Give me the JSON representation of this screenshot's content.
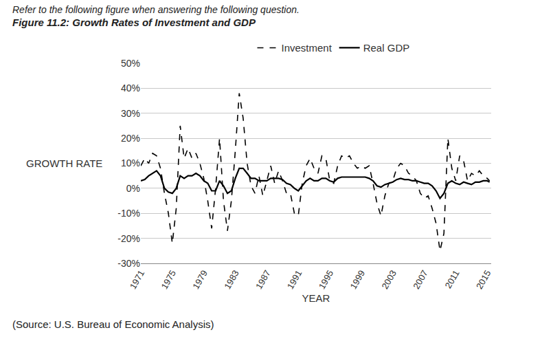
{
  "chart_data": {
    "type": "line",
    "caption": "Refer to the following figure when answering the following question.",
    "title": "Figure 11.2: Growth Rates of Investment and GDP",
    "source": "(Source: U.S. Bureau of Economic Analysis)",
    "xlabel": "YEAR",
    "ylabel": "GROWTH RATE",
    "x": [
      1971,
      1971.5,
      1972,
      1972.5,
      1973,
      1973.5,
      1974,
      1974.5,
      1975,
      1975.5,
      1976,
      1976.5,
      1977,
      1977.5,
      1978,
      1978.5,
      1979,
      1979.5,
      1980,
      1980.5,
      1981,
      1981.5,
      1982,
      1982.5,
      1983,
      1983.5,
      1984,
      1984.5,
      1985,
      1985.5,
      1986,
      1986.5,
      1987,
      1987.5,
      1988,
      1988.5,
      1989,
      1989.5,
      1990,
      1990.5,
      1991,
      1991.5,
      1992,
      1992.5,
      1993,
      1993.5,
      1994,
      1994.5,
      1995,
      1995.5,
      1996,
      1996.5,
      1997,
      1997.5,
      1998,
      1998.5,
      1999,
      1999.5,
      2000,
      2000.5,
      2001,
      2001.5,
      2002,
      2002.5,
      2003,
      2003.5,
      2004,
      2004.5,
      2005,
      2005.5,
      2006,
      2006.5,
      2007,
      2007.5,
      2008,
      2008.5,
      2009,
      2009.5,
      2010,
      2010.5,
      2011,
      2011.5,
      2012,
      2012.5,
      2013,
      2013.5,
      2014,
      2014.5,
      2015,
      2015.3
    ],
    "series": [
      {
        "name": "Investment",
        "color": "#000000",
        "line_style": "dash",
        "values": [
          9,
          12,
          10,
          14,
          13,
          8,
          -2,
          -10,
          -22,
          -8,
          25,
          12,
          16,
          12,
          14,
          10,
          4,
          -5,
          -16,
          0,
          20,
          -5,
          -17,
          -5,
          15,
          38,
          28,
          10,
          1,
          -2,
          5,
          -3,
          3,
          9,
          2,
          7,
          3,
          -2,
          -2,
          -10,
          -11,
          2,
          9,
          12,
          8,
          6,
          13,
          12,
          3,
          2,
          9,
          13,
          12,
          13,
          10,
          8,
          9,
          8,
          9,
          2,
          -6,
          -11,
          -3,
          2,
          3,
          8,
          10,
          9,
          6,
          5,
          3,
          -2,
          -4,
          -3,
          -8,
          -14,
          -25,
          -18,
          20,
          8,
          3,
          13,
          11,
          3,
          6,
          5,
          7,
          5,
          4,
          3
        ]
      },
      {
        "name": "Real GDP",
        "color": "#000000",
        "line_style": "solid",
        "values": [
          3,
          3.5,
          5,
          6,
          7,
          5,
          0,
          -1.5,
          -2,
          0,
          5,
          4,
          5,
          5,
          6,
          5,
          3,
          2,
          -1,
          -1,
          3,
          1,
          -2,
          -1,
          4,
          8,
          8,
          6,
          4,
          4,
          3,
          3,
          3,
          4,
          4,
          4,
          3.5,
          2,
          1.5,
          0,
          -1,
          1,
          3,
          4,
          3,
          3,
          4,
          4,
          3,
          2.5,
          4,
          4.5,
          4.5,
          4.5,
          4.5,
          4.5,
          4.5,
          4.5,
          4,
          3,
          1,
          0.5,
          1.5,
          2,
          2.5,
          3.5,
          4,
          3.5,
          3.5,
          3,
          3,
          2.5,
          2,
          2,
          1,
          -1,
          -4,
          -2,
          2,
          3,
          2,
          1.5,
          2.5,
          2,
          1.5,
          2.5,
          2.5,
          3,
          3,
          2.5
        ]
      }
    ],
    "xlim": [
      1971,
      2015.5
    ],
    "xticks": [
      1971,
      1975,
      1979,
      1983,
      1987,
      1991,
      1995,
      1999,
      2003,
      2007,
      2011,
      2015
    ],
    "ylim": [
      -30,
      50
    ],
    "yticks": [
      {
        "value": -30,
        "label": "-30%"
      },
      {
        "value": -20,
        "label": "-20%"
      },
      {
        "value": -10,
        "label": "-10%"
      },
      {
        "value": 0,
        "label": "0%"
      },
      {
        "value": 10,
        "label": "10%"
      },
      {
        "value": 20,
        "label": "20%"
      },
      {
        "value": 30,
        "label": "30%"
      },
      {
        "value": 40,
        "label": "40%"
      },
      {
        "value": 50,
        "label": "50%"
      }
    ],
    "grid": true,
    "legend": "top"
  }
}
